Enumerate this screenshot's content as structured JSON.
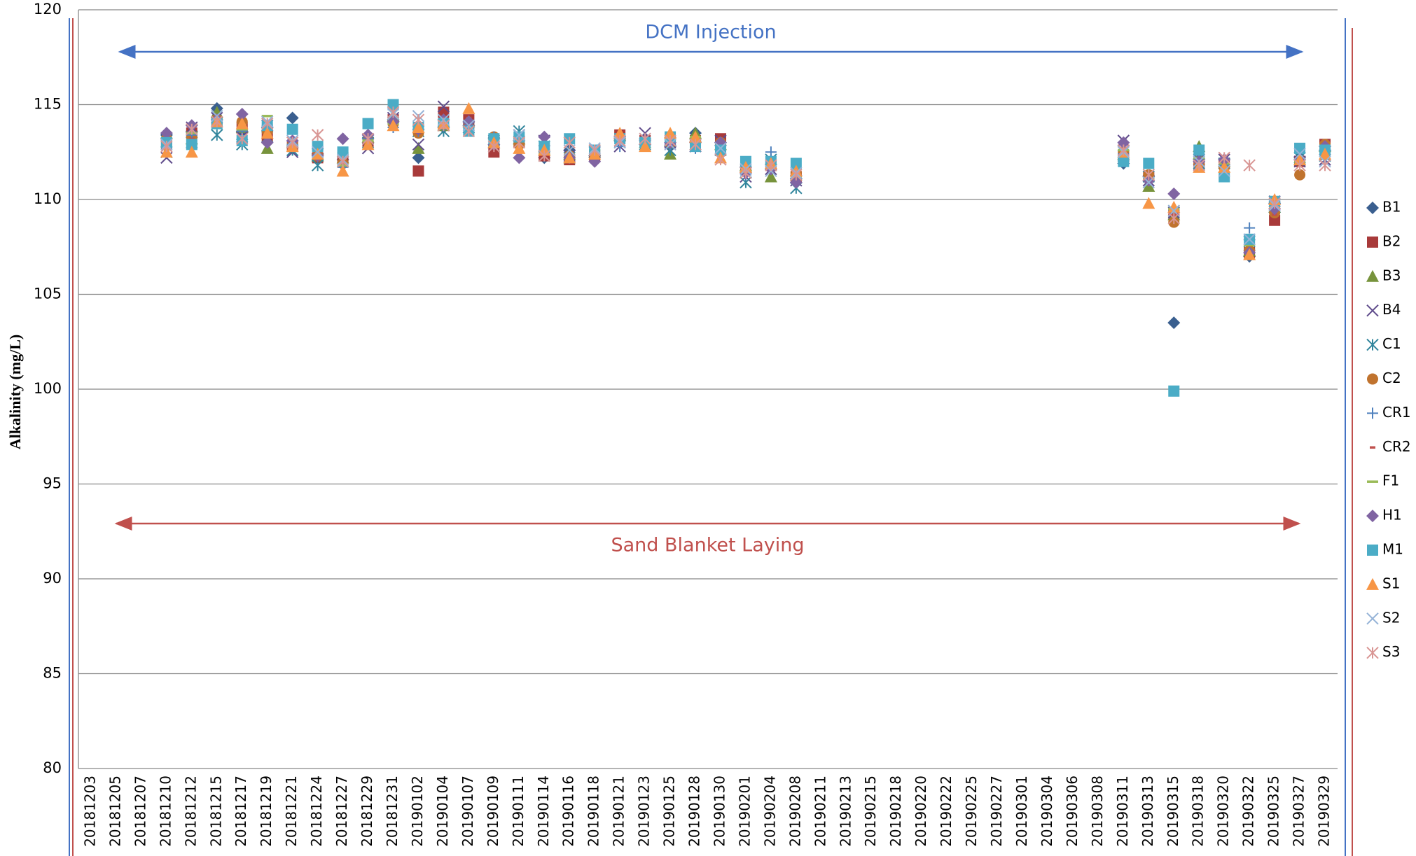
{
  "chart_data": {
    "type": "scatter",
    "y_label": "Alkalinity (mg/L)",
    "categories": [
      "20181203",
      "20181205",
      "20181207",
      "20181210",
      "20181212",
      "20181215",
      "20181217",
      "20181219",
      "20181221",
      "20181224",
      "20181227",
      "20181229",
      "20181231",
      "20190102",
      "20190104",
      "20190107",
      "20190109",
      "20190111",
      "20190114",
      "20190116",
      "20190118",
      "20190121",
      "20190123",
      "20190125",
      "20190128",
      "20190130",
      "20190201",
      "20190204",
      "20190208",
      "20190211",
      "20190213",
      "20190215",
      "20190218",
      "20190220",
      "20190222",
      "20190225",
      "20190227",
      "20190301",
      "20190304",
      "20190306",
      "20190308",
      "20190311",
      "20190313",
      "20190315",
      "20190318",
      "20190320",
      "20190322",
      "20190325",
      "20190327",
      "20190329"
    ],
    "ylim": [
      80,
      120
    ],
    "yticks": [
      80,
      85,
      90,
      95,
      100,
      105,
      110,
      115,
      120
    ],
    "grid": true,
    "legend": "right",
    "annotations": [
      {
        "text": "DCM Injection",
        "color": "#4472c4"
      },
      {
        "text": "Sand Blanket Laying",
        "color": "#c0504d"
      }
    ],
    "series": [
      {
        "name": "B1",
        "color": "#3a5f8f",
        "marker": "diamond",
        "values": [
          null,
          null,
          null,
          113.4,
          113.6,
          114.8,
          113.6,
          113.8,
          114.3,
          112.4,
          112.1,
          113.2,
          114.2,
          112.2,
          113.8,
          113.9,
          113.2,
          113.1,
          112.2,
          112.6,
          112.3,
          113.3,
          112.9,
          112.8,
          113.5,
          113,
          111.7,
          111.6,
          111.1,
          null,
          null,
          null,
          null,
          null,
          null,
          null,
          null,
          null,
          null,
          null,
          null,
          111.9,
          111.2,
          103.5,
          112.1,
          112.1,
          107,
          109.8,
          112.2,
          112.6
        ]
      },
      {
        "name": "B2",
        "color": "#a83a3a",
        "marker": "square",
        "values": [
          null,
          null,
          null,
          112.9,
          113.5,
          114.1,
          113.8,
          113.3,
          112.8,
          112.2,
          112.2,
          113,
          114.2,
          111.5,
          114.6,
          114.2,
          112.5,
          113,
          112.3,
          112.1,
          112.3,
          113.4,
          113.1,
          113.1,
          113.1,
          113.2,
          111.6,
          111.8,
          111.2,
          null,
          null,
          null,
          null,
          null,
          null,
          null,
          null,
          null,
          null,
          null,
          null,
          112.3,
          111.2,
          109.3,
          111.8,
          111.9,
          107.2,
          108.9,
          112,
          112.9
        ]
      },
      {
        "name": "B3",
        "color": "#77933c",
        "marker": "triangle",
        "values": [
          null,
          null,
          null,
          113.5,
          113.2,
          114.6,
          113.8,
          112.7,
          113,
          112.3,
          112.2,
          113.3,
          114.4,
          112.7,
          113.9,
          114.1,
          113,
          113.2,
          112.6,
          112.4,
          112.5,
          113.4,
          113,
          112.4,
          113.5,
          112.9,
          111.8,
          111.2,
          111.3,
          null,
          null,
          null,
          null,
          null,
          null,
          null,
          null,
          null,
          null,
          null,
          null,
          112.4,
          110.7,
          109.2,
          112.8,
          112,
          107.3,
          109.6,
          112.1,
          112.8
        ]
      },
      {
        "name": "B4",
        "color": "#5f4b8b",
        "marker": "x",
        "values": [
          null,
          null,
          null,
          112.2,
          113.8,
          114.3,
          113.3,
          113.9,
          112.5,
          112.4,
          112,
          112.7,
          114.3,
          112.9,
          114.9,
          113.8,
          113,
          113.4,
          113.1,
          112.3,
          112.5,
          112.8,
          113.5,
          113,
          112.8,
          113.1,
          111.2,
          111.6,
          111,
          null,
          null,
          null,
          null,
          null,
          null,
          null,
          null,
          null,
          null,
          null,
          null,
          113.1,
          111,
          109.3,
          112.1,
          112.1,
          107.6,
          109.9,
          112,
          112.1
        ]
      },
      {
        "name": "C1",
        "color": "#31859c",
        "marker": "asterisk",
        "values": [
          null,
          null,
          null,
          112.5,
          113,
          113.4,
          112.9,
          113.3,
          112.6,
          111.8,
          112,
          113,
          114.6,
          113.6,
          113.6,
          113.8,
          113.1,
          113.6,
          112.8,
          112.2,
          112.6,
          113,
          112.9,
          112.6,
          112.9,
          112.6,
          110.9,
          112.1,
          110.6,
          null,
          null,
          null,
          null,
          null,
          null,
          null,
          null,
          null,
          null,
          null,
          null,
          112.3,
          111.2,
          109.4,
          111.9,
          111.9,
          107.8,
          109.6,
          112.2,
          112.3
        ]
      },
      {
        "name": "C2",
        "color": "#c0732e",
        "marker": "circle",
        "values": [
          null,
          null,
          null,
          113.2,
          113.3,
          114.2,
          114.1,
          113.6,
          112.9,
          112.3,
          111.9,
          113.1,
          114,
          113.5,
          114.1,
          113.8,
          113.3,
          112.9,
          112.6,
          112.3,
          112.4,
          113.2,
          112.9,
          113,
          113.1,
          113,
          111.5,
          111.8,
          111.4,
          null,
          null,
          null,
          null,
          null,
          null,
          null,
          null,
          null,
          null,
          null,
          null,
          112.5,
          111.3,
          108.8,
          111.9,
          111.7,
          107.3,
          109.3,
          111.3,
          112.9
        ]
      },
      {
        "name": "CR1",
        "color": "#4f81bd",
        "marker": "plus",
        "values": [
          null,
          null,
          null,
          112.8,
          113.4,
          114.1,
          113.6,
          113.9,
          112.9,
          112.6,
          111.7,
          113.2,
          113.8,
          113.6,
          114.2,
          113.9,
          113.3,
          113.2,
          112.5,
          112.2,
          112.6,
          112.8,
          113.2,
          112.9,
          112.7,
          113,
          111.3,
          112.5,
          111.1,
          null,
          null,
          null,
          null,
          null,
          null,
          null,
          null,
          null,
          null,
          null,
          null,
          112.4,
          111.1,
          109.4,
          112,
          111.8,
          108.5,
          109.7,
          112.1,
          112.8
        ]
      },
      {
        "name": "CR2",
        "color": "#c0504d",
        "marker": "dash",
        "values": [
          null,
          null,
          null,
          112.7,
          113.2,
          113.9,
          113.7,
          113.5,
          113.1,
          112.1,
          111.9,
          112.9,
          114.1,
          113.5,
          114.1,
          114.3,
          113.1,
          113.1,
          112.5,
          112.3,
          112.5,
          113.1,
          113,
          113.1,
          113,
          113.1,
          111.4,
          111.7,
          111.3,
          null,
          null,
          null,
          null,
          null,
          null,
          null,
          null,
          null,
          null,
          null,
          null,
          112.3,
          111.2,
          109.2,
          111.9,
          111.9,
          107.1,
          109.2,
          112.2,
          112.6
        ]
      },
      {
        "name": "F1",
        "color": "#9bbb59",
        "marker": "longdash",
        "values": [
          null,
          null,
          null,
          113.1,
          113.5,
          114.2,
          113.7,
          114.4,
          112.8,
          112.2,
          111.8,
          113.1,
          114,
          113.6,
          114,
          114.1,
          113.2,
          113.1,
          112.4,
          112.2,
          112.6,
          113.3,
          112.8,
          113.2,
          113.3,
          112.8,
          111.5,
          111.9,
          111.2,
          null,
          null,
          null,
          null,
          null,
          null,
          null,
          null,
          null,
          null,
          null,
          null,
          112.6,
          111.1,
          109.5,
          112.2,
          111.9,
          107.6,
          109.6,
          112,
          112.7
        ]
      },
      {
        "name": "H1",
        "color": "#8064a2",
        "marker": "diamond",
        "values": [
          null,
          null,
          null,
          113.5,
          113.9,
          114.2,
          114.5,
          113,
          113.1,
          112.3,
          113.2,
          113.4,
          114.1,
          113.7,
          114.2,
          114.1,
          112.9,
          112.2,
          113.3,
          112.2,
          112,
          113.2,
          113.1,
          113,
          113,
          113,
          111.4,
          111.6,
          110.9,
          null,
          null,
          null,
          null,
          null,
          null,
          null,
          null,
          null,
          null,
          null,
          null,
          113,
          111,
          110.3,
          112,
          112.1,
          107.2,
          109.5,
          112.1,
          112.8
        ]
      },
      {
        "name": "M1",
        "color": "#4bacc6",
        "marker": "square",
        "values": [
          null,
          null,
          null,
          113,
          112.9,
          114,
          113.1,
          113.9,
          113.7,
          112.8,
          112.5,
          114,
          115,
          113.8,
          114,
          113.6,
          113.2,
          113.3,
          112.8,
          113.2,
          112.6,
          113.2,
          113,
          113.3,
          112.8,
          112.6,
          112,
          112,
          111.9,
          null,
          null,
          null,
          null,
          null,
          null,
          null,
          null,
          null,
          null,
          null,
          null,
          112,
          111.9,
          99.9,
          112.6,
          111.2,
          107.9,
          109.9,
          112.7,
          112.6
        ]
      },
      {
        "name": "S1",
        "color": "#f79646",
        "marker": "triangle",
        "values": [
          null,
          null,
          null,
          112.5,
          112.5,
          114.1,
          114,
          113.5,
          112.8,
          112.4,
          111.5,
          112.9,
          113.9,
          113.8,
          114,
          114.8,
          113,
          112.7,
          112.6,
          112.2,
          112.4,
          113.5,
          112.8,
          113.5,
          113.3,
          112.2,
          111.7,
          111.9,
          111.5,
          null,
          null,
          null,
          null,
          null,
          null,
          null,
          null,
          null,
          null,
          null,
          null,
          112.5,
          109.8,
          109.6,
          111.7,
          111.7,
          107.1,
          110,
          112.1,
          112.4
        ]
      },
      {
        "name": "S2",
        "color": "#95b3d7",
        "marker": "x",
        "values": [
          null,
          null,
          null,
          112.9,
          113.7,
          114.4,
          113.2,
          114.1,
          113.1,
          112.5,
          112.1,
          113.2,
          114.5,
          114.4,
          114.2,
          113.9,
          112.8,
          113.4,
          112.3,
          112.6,
          112.7,
          113,
          113.2,
          112.9,
          112.9,
          112.7,
          111.6,
          111.5,
          111.4,
          null,
          null,
          null,
          null,
          null,
          null,
          null,
          null,
          null,
          null,
          null,
          null,
          112.5,
          110.9,
          109.4,
          112,
          111.5,
          107.9,
          109.7,
          112.4,
          112
        ]
      },
      {
        "name": "S3",
        "color": "#d99694",
        "marker": "asterisk",
        "values": [
          null,
          null,
          null,
          112.8,
          113.7,
          114.1,
          113.2,
          114,
          113,
          113.4,
          112,
          113.2,
          114.6,
          114.2,
          113.9,
          113.6,
          112.8,
          113,
          112.3,
          113,
          112.6,
          113.1,
          113.2,
          113.1,
          112.9,
          112.1,
          111.4,
          111.8,
          111.3,
          null,
          null,
          null,
          null,
          null,
          null,
          null,
          null,
          null,
          null,
          null,
          null,
          112.6,
          111.3,
          109,
          111.8,
          112.2,
          111.8,
          109.8,
          111.8,
          111.8
        ]
      }
    ]
  }
}
